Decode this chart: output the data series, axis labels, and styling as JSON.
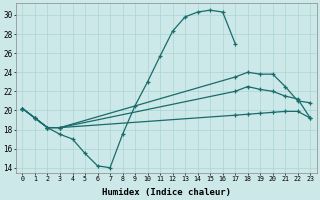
{
  "xlabel": "Humidex (Indice chaleur)",
  "xlim": [
    -0.5,
    23.5
  ],
  "ylim": [
    13.5,
    31.2
  ],
  "yticks": [
    14,
    16,
    18,
    20,
    22,
    24,
    26,
    28,
    30
  ],
  "xticks": [
    0,
    1,
    2,
    3,
    4,
    5,
    6,
    7,
    8,
    9,
    10,
    11,
    12,
    13,
    14,
    15,
    16,
    17,
    18,
    19,
    20,
    21,
    22,
    23
  ],
  "bg_color": "#cce8e8",
  "grid_color": "#aad4d4",
  "line_color": "#1a6b6b",
  "line1_x": [
    0,
    1,
    2,
    3,
    4,
    5,
    6,
    7,
    8,
    9,
    10,
    11,
    12,
    13,
    14,
    15,
    16,
    17
  ],
  "line1_y": [
    20.2,
    19.2,
    18.2,
    17.5,
    17.0,
    15.5,
    14.2,
    14.0,
    17.5,
    20.5,
    23.0,
    25.7,
    28.3,
    29.8,
    30.3,
    30.5,
    30.3,
    27.0
  ],
  "line2_x": [
    0,
    1,
    2,
    3,
    17,
    18,
    19,
    20,
    21,
    22,
    23
  ],
  "line2_y": [
    20.2,
    19.2,
    18.2,
    18.2,
    19.5,
    19.6,
    19.7,
    19.8,
    19.9,
    19.9,
    19.2
  ],
  "line3_x": [
    0,
    1,
    2,
    3,
    17,
    18,
    19,
    20,
    21,
    22,
    23
  ],
  "line3_y": [
    20.2,
    19.2,
    18.2,
    18.2,
    23.5,
    24.0,
    23.8,
    23.8,
    22.5,
    21.0,
    20.8
  ],
  "line4_x": [
    0,
    1,
    2,
    3,
    17,
    18,
    19,
    20,
    21,
    22,
    23
  ],
  "line4_y": [
    20.2,
    19.2,
    18.2,
    18.2,
    22.0,
    22.5,
    22.2,
    22.0,
    21.5,
    21.2,
    19.2
  ]
}
